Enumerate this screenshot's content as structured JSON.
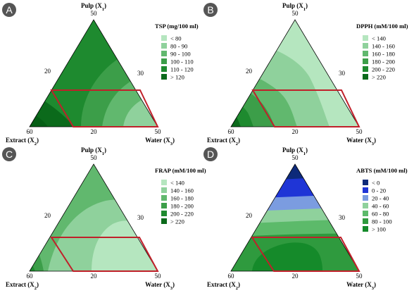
{
  "chart_data": [
    {
      "type": "heatmap",
      "panel_label": "A",
      "title": "TSP (mg/100 ml)",
      "vertex_labels": {
        "top": "Pulp (X",
        "left": "Extract (X",
        "right": "Water (X"
      },
      "vertex_subscripts": {
        "top": "1",
        "left": "2",
        "right": "3"
      },
      "tick_labels": {
        "top": "50",
        "left_bottom": "60",
        "bottom_mid": "20",
        "right_bottom": "50",
        "left_side": "20",
        "right_side": "30"
      },
      "legend": [
        "< 80",
        "80 - 90",
        "90 - 100",
        "100 - 110",
        "110 - 120",
        "> 120"
      ],
      "colors": [
        "#b5e6bf",
        "#8fd19c",
        "#61b86e",
        "#3c9e49",
        "#1e8a2f",
        "#0b6a1b"
      ]
    },
    {
      "type": "heatmap",
      "panel_label": "B",
      "title": "DPPH (mM/100 ml)",
      "vertex_labels": {
        "top": "Pulp (X",
        "left": "Extract (X",
        "right": "Water (X"
      },
      "vertex_subscripts": {
        "top": "1",
        "left": "2",
        "right": "3"
      },
      "tick_labels": {
        "top": "50",
        "left_bottom": "60",
        "bottom_mid": "20",
        "right_bottom": "50",
        "left_side": "20",
        "right_side": "30"
      },
      "legend": [
        "< 140",
        "140 - 160",
        "160 - 180",
        "180 - 200",
        "200 - 220",
        "> 220"
      ],
      "colors": [
        "#b5e6bf",
        "#8fd19c",
        "#61b86e",
        "#3c9e49",
        "#1e8a2f",
        "#0b6a1b"
      ]
    },
    {
      "type": "heatmap",
      "panel_label": "C",
      "title": "FRAP (mM/100 ml)",
      "vertex_labels": {
        "top": "Pulp (X",
        "left": "Extract (X",
        "right": "Water (X"
      },
      "vertex_subscripts": {
        "top": "1",
        "left": "2",
        "right": "3"
      },
      "tick_labels": {
        "top": "50",
        "left_bottom": "60",
        "bottom_mid": "20",
        "right_bottom": "50",
        "left_side": "20",
        "right_side": "30"
      },
      "legend": [
        "< 140",
        "140 - 160",
        "160 - 180",
        "180 - 200",
        "200 - 220",
        "> 220"
      ],
      "colors": [
        "#b5e6bf",
        "#8fd19c",
        "#61b86e",
        "#3c9e49",
        "#1e8a2f",
        "#0b6a1b"
      ]
    },
    {
      "type": "heatmap",
      "panel_label": "D",
      "title": "ABTS (mM/100 ml)",
      "vertex_labels": {
        "top": "Pulp (X",
        "left": "Extract (X",
        "right": "Water (X"
      },
      "vertex_subscripts": {
        "top": "1",
        "left": "2",
        "right": "3"
      },
      "tick_labels": {
        "top": "50",
        "left_bottom": "60",
        "bottom_mid": "20",
        "right_bottom": "50",
        "left_side": "20",
        "right_side": "30"
      },
      "legend": [
        "< 0",
        "0 - 20",
        "20 - 40",
        "40 - 60",
        "60 - 80",
        "80 - 100",
        "> 100"
      ],
      "colors": [
        "#0d2a7a",
        "#1f35d6",
        "#7b9ce0",
        "#8fd19c",
        "#5cba6a",
        "#2f9a3e",
        "#158a2a"
      ]
    }
  ],
  "colors": {
    "region_outline": "#c0202a",
    "badge": "#555555"
  }
}
